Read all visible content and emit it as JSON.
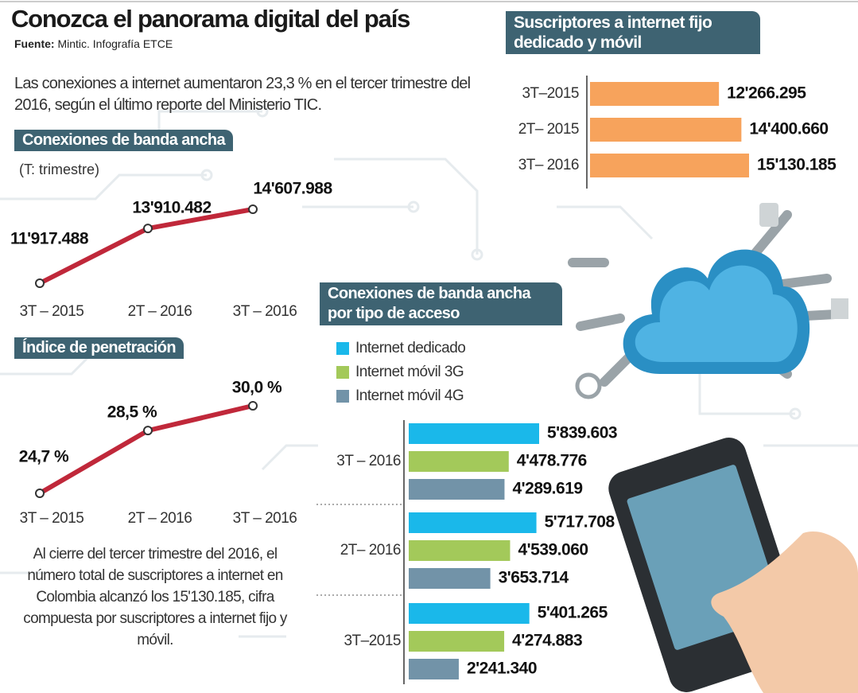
{
  "header": {
    "title": "Conozca el panorama digital del país",
    "source_label": "Fuente:",
    "source": "Mintic. Infografía ETCE",
    "intro": "Las conexiones a internet aumentaron 23,3 % en el tercer trimestre del 2016, según el último reporte del Ministerio TIC."
  },
  "note": "Al cierre del tercer trimestre del 2016, el número total de suscriptores a internet en Colombia alcanzó los 15'130.185, cifra compuesta por suscriptores a internet fijo y móvil.",
  "chart_data": [
    {
      "type": "hbar",
      "title": "Suscriptores a internet fijo dedicado y móvil",
      "categories": [
        "3T–2015",
        "2T– 2015",
        "3T– 2016"
      ],
      "values": [
        12266295,
        14400660,
        15130185
      ],
      "value_labels": [
        "12'266.295",
        "14'400.660",
        "15'130.185"
      ],
      "color": "#f7a35c"
    },
    {
      "type": "line",
      "title": "Conexiones de banda ancha",
      "subtitle": "(T: trimestre)",
      "categories": [
        "3T – 2015",
        "2T – 2016",
        "3T – 2016"
      ],
      "values": [
        11917488,
        13910482,
        14607988
      ],
      "value_labels": [
        "11'917.488",
        "13'910.482",
        "14'607.988"
      ],
      "color": "#c0283a"
    },
    {
      "type": "line",
      "title": "Índice de penetración",
      "categories": [
        "3T – 2015",
        "2T – 2016",
        "3T – 2016"
      ],
      "values": [
        24.7,
        28.5,
        30.0
      ],
      "value_labels": [
        "24,7 %",
        "28,5 %",
        "30,0 %"
      ],
      "color": "#c0283a"
    },
    {
      "type": "grouped_hbar",
      "title": "Conexiones de banda ancha por tipo de acceso",
      "categories": [
        "3T – 2016",
        "2T– 2016",
        "3T–2015"
      ],
      "series": [
        {
          "name": "Internet dedicado",
          "color": "#1ab8ea",
          "values": [
            5839603,
            5717708,
            5401265
          ],
          "value_labels": [
            "5'839.603",
            "5'717.708",
            "5'401.265"
          ]
        },
        {
          "name": "Internet móvil 3G",
          "color": "#a3c95a",
          "values": [
            4478776,
            4539060,
            4274883
          ],
          "value_labels": [
            "4'478.776",
            "4'539.060",
            "4'274.883"
          ]
        },
        {
          "name": "Internet móvil 4G",
          "color": "#7293a8",
          "values": [
            4289619,
            3653714,
            2241340
          ],
          "value_labels": [
            "4'289.619",
            "3'653.714",
            "2'241.340"
          ]
        }
      ]
    }
  ]
}
